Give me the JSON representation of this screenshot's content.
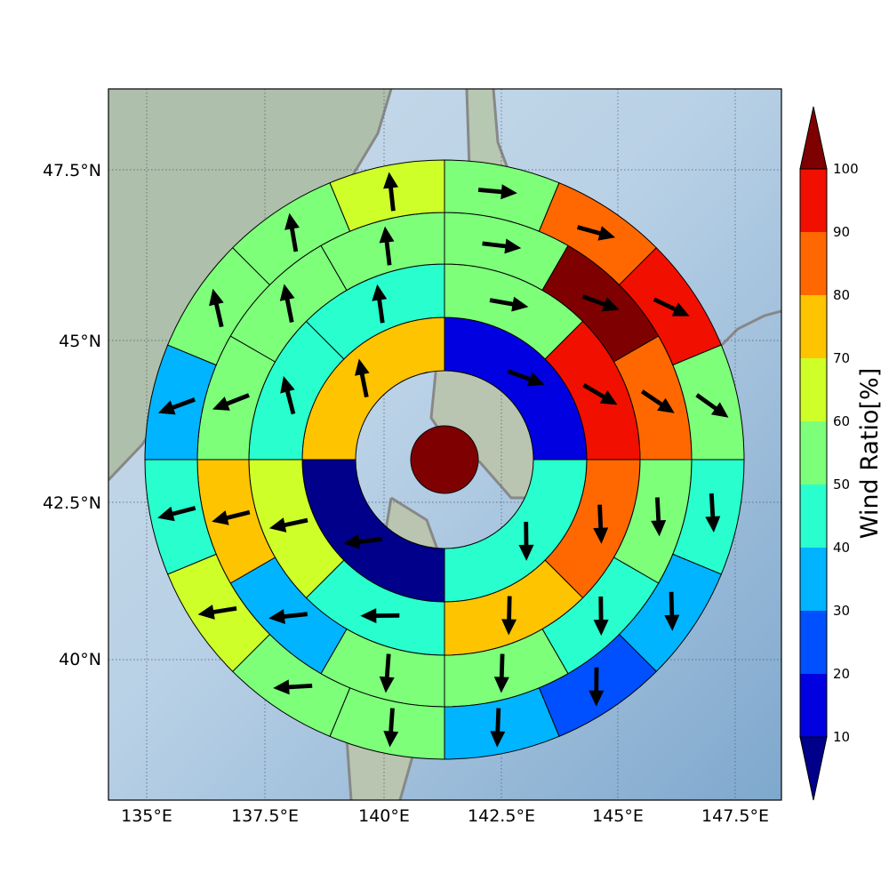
{
  "map": {
    "lon_ticks": [
      "135°E",
      "137.5°E",
      "140°E",
      "142.5°E",
      "145°E",
      "147.5°E"
    ],
    "lat_ticks": [
      "40°N",
      "42.5°N",
      "45°N",
      "47.5°N"
    ],
    "polar_grid": {
      "rings": 5,
      "sectors_per_ring": [
        4,
        8,
        12,
        16,
        20
      ],
      "ring_ratio_bins": [
        [
          1,
          4,
          0,
          7
        ],
        [
          5,
          9,
          8,
          7,
          4,
          6,
          4,
          4
        ],
        [
          5,
          10,
          8,
          5,
          4,
          5,
          5,
          3,
          7,
          5,
          5,
          5
        ],
        [
          5,
          8,
          9,
          5,
          4,
          3,
          2,
          3,
          5,
          5,
          6,
          4,
          3,
          5,
          5,
          6
        ],
        [
          5,
          6,
          7,
          7,
          4,
          4,
          2,
          2,
          1,
          3,
          3,
          1,
          3,
          3,
          4,
          4,
          5,
          5,
          7,
          6
        ]
      ]
    }
  },
  "colorbar": {
    "label": "Wind Ratio[%]",
    "tick_labels": [
      "10",
      "20",
      "30",
      "40",
      "50",
      "60",
      "70",
      "80",
      "90",
      "100"
    ],
    "colors": [
      "#00008b",
      "#0000e0",
      "#0050ff",
      "#00b4ff",
      "#29ffce",
      "#7dff7a",
      "#ceff29",
      "#ffc400",
      "#ff6800",
      "#f10f00",
      "#7f0000"
    ],
    "under_color": "#00008b",
    "over_color": "#7f0000"
  }
}
